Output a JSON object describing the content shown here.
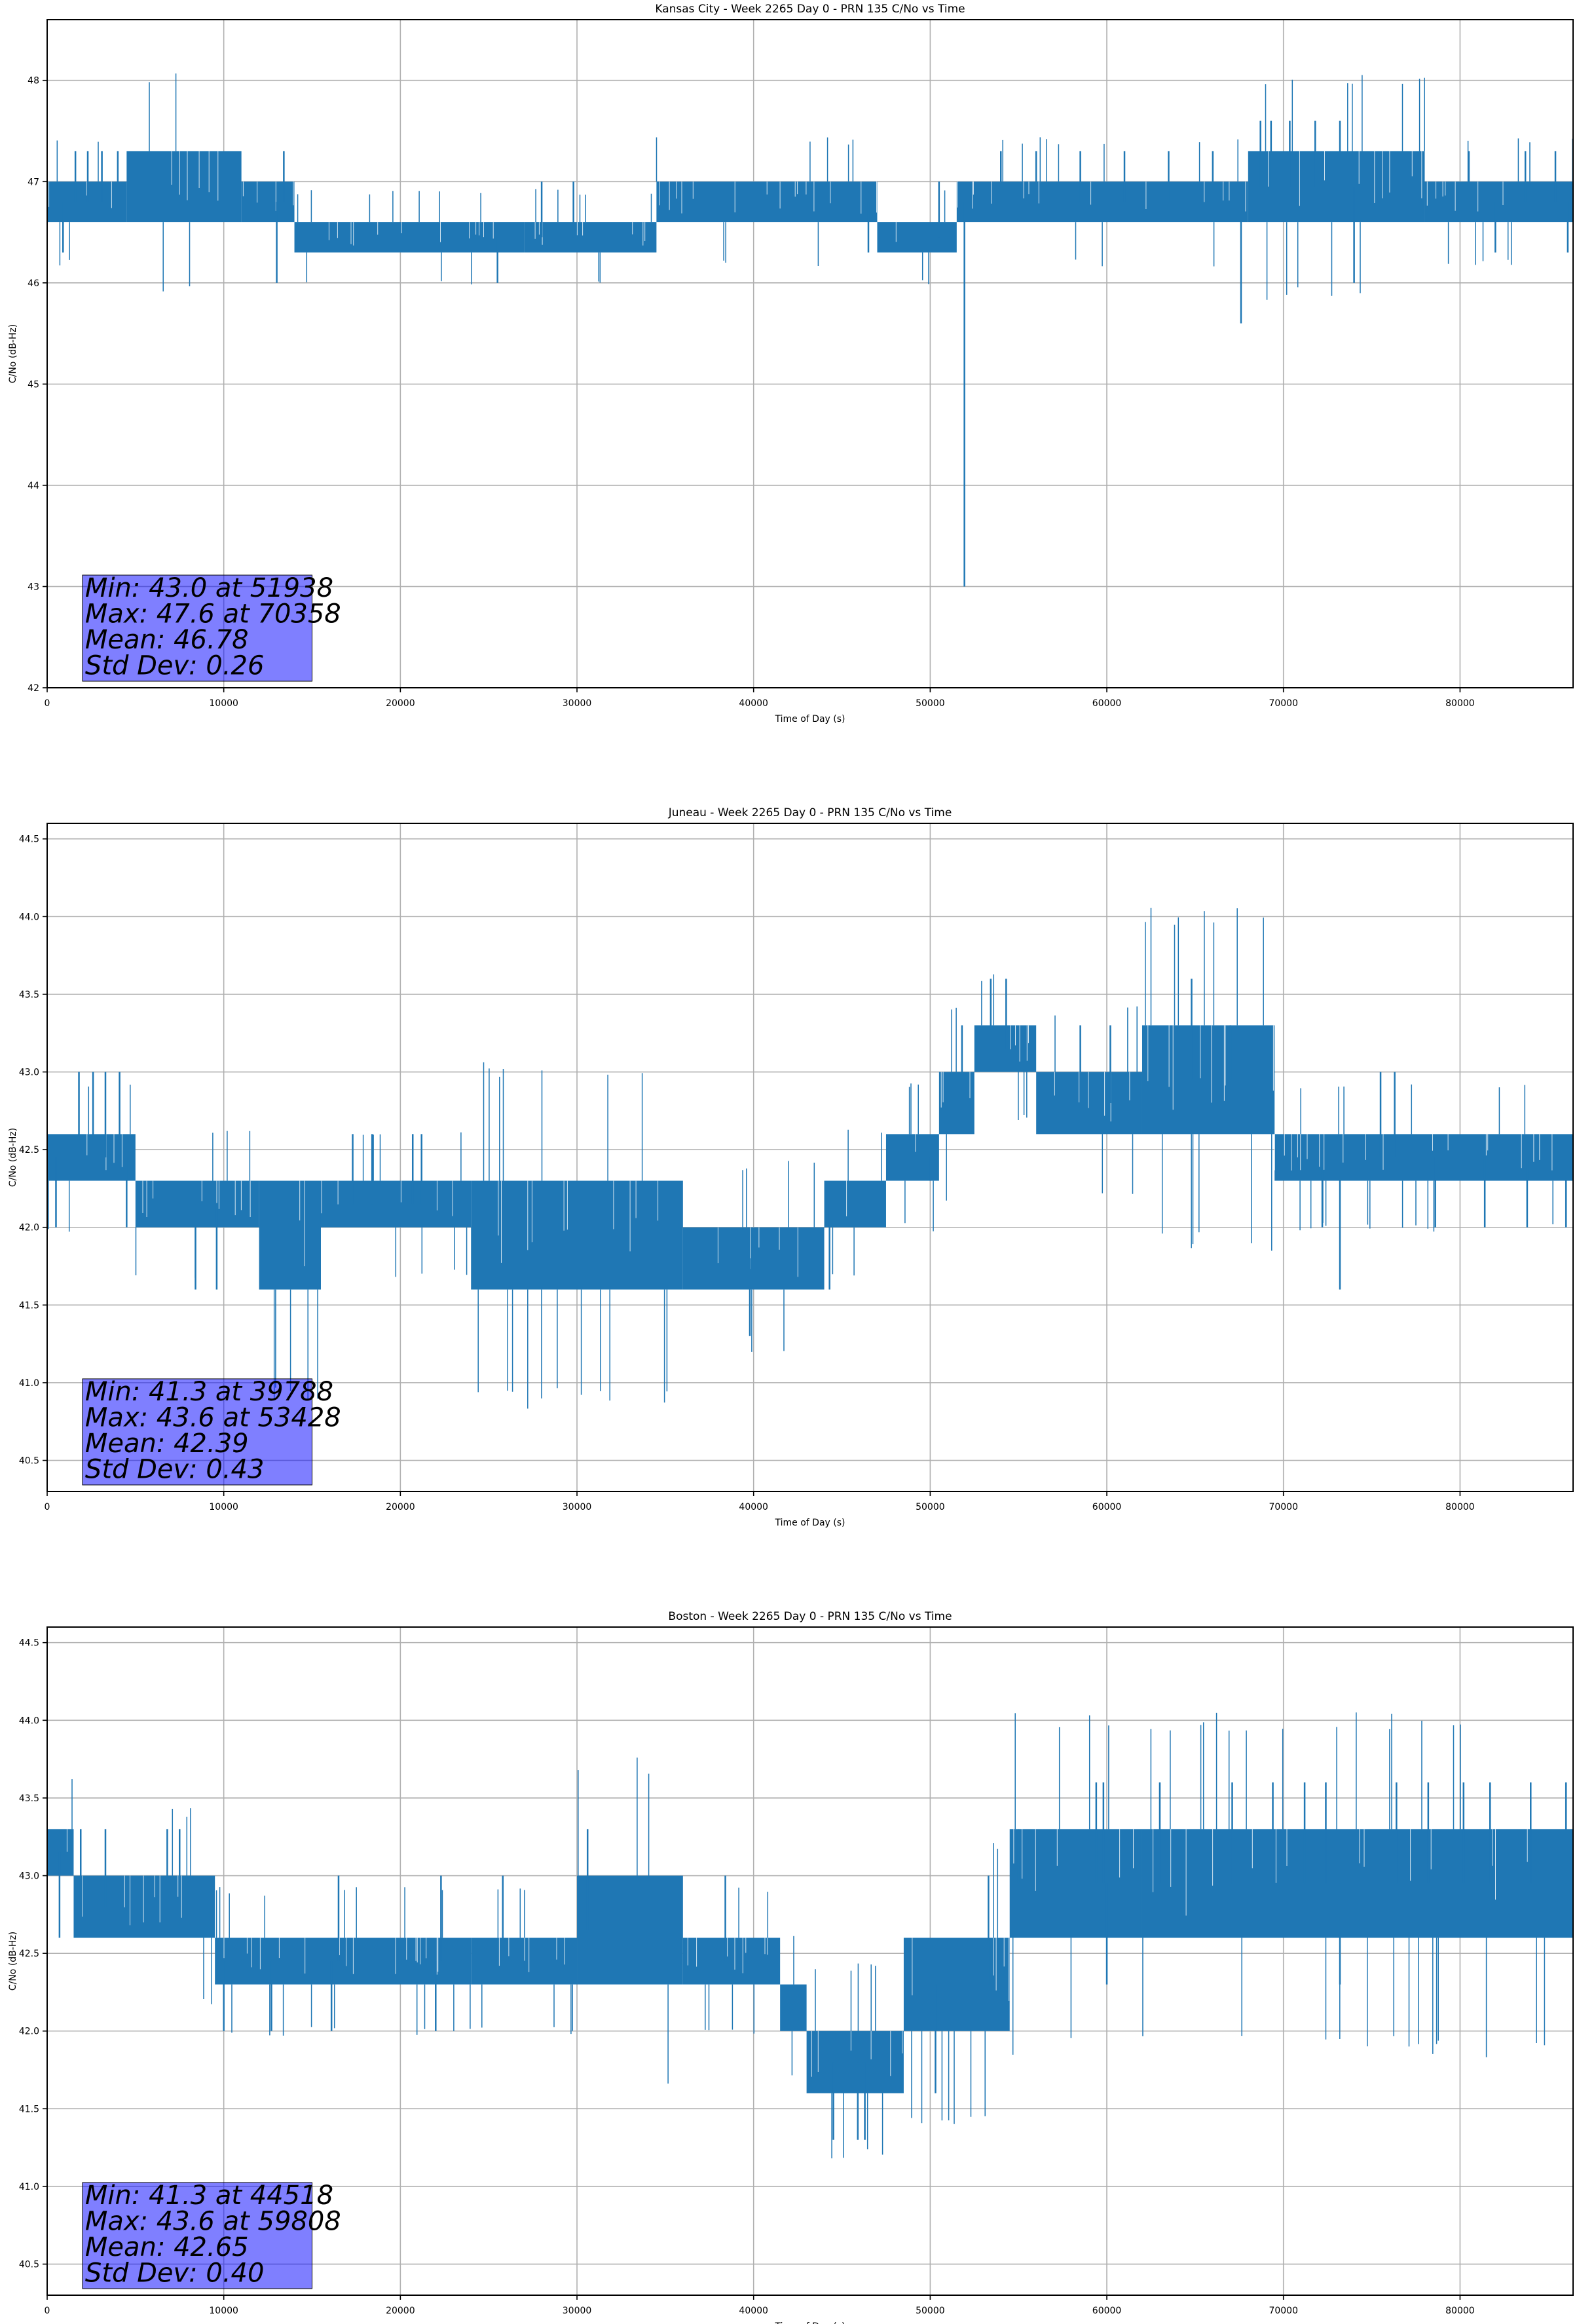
{
  "chart_data": [
    {
      "type": "line",
      "title": "Kansas City - Week 2265 Day 0 - PRN 135 C/No vs Time",
      "xlabel": "Time of Day (s)",
      "ylabel": "C/No (dB-Hz)",
      "xlim": [
        0,
        86400
      ],
      "ylim": [
        42,
        48.6
      ],
      "xticks": [
        0,
        10000,
        20000,
        30000,
        40000,
        50000,
        60000,
        70000,
        80000
      ],
      "yticks": [
        42,
        43,
        44,
        45,
        46,
        47,
        48
      ],
      "ytick_labels": [
        "42",
        "43",
        "44",
        "45",
        "46",
        "47",
        "48"
      ],
      "grid": true,
      "line_color": "#1f77b4",
      "stats": [
        "Min: 43.0 at 51938",
        "Max: 47.6 at 70358",
        "Mean: 46.78",
        "Std Dev: 0.26"
      ],
      "series": [
        {
          "segments": [
            {
              "x": [
                0,
                4500
              ],
              "base": 46.6,
              "top": 47.0
            },
            {
              "x": [
                4500,
                11000
              ],
              "base": 46.6,
              "top": 47.3
            },
            {
              "x": [
                11000,
                14000
              ],
              "base": 46.6,
              "top": 47.0
            },
            {
              "x": [
                14000,
                27000
              ],
              "base": 46.3,
              "top": 46.6
            },
            {
              "x": [
                27000,
                34500
              ],
              "base": 46.3,
              "top": 46.6
            },
            {
              "x": [
                34500,
                47000
              ],
              "base": 46.6,
              "top": 47.0
            },
            {
              "x": [
                47000,
                51500
              ],
              "base": 46.3,
              "top": 46.6
            },
            {
              "x": [
                51500,
                68000
              ],
              "base": 46.6,
              "top": 47.0
            },
            {
              "x": [
                68000,
                78000
              ],
              "base": 46.6,
              "top": 47.3
            },
            {
              "x": [
                78000,
                86400
              ],
              "base": 46.6,
              "top": 47.0
            }
          ],
          "spikes": [
            {
              "x": 900,
              "y": 46.3
            },
            {
              "x": 1600,
              "y": 47.3
            },
            {
              "x": 2300,
              "y": 47.3
            },
            {
              "x": 3100,
              "y": 47.3
            },
            {
              "x": 4000,
              "y": 47.3
            },
            {
              "x": 13000,
              "y": 46.0
            },
            {
              "x": 13400,
              "y": 47.3
            },
            {
              "x": 25500,
              "y": 46.0
            },
            {
              "x": 28000,
              "y": 47.0
            },
            {
              "x": 29800,
              "y": 47.0
            },
            {
              "x": 46500,
              "y": 46.3
            },
            {
              "x": 50500,
              "y": 47.0
            },
            {
              "x": 51938,
              "y": 43.0
            },
            {
              "x": 54000,
              "y": 47.3
            },
            {
              "x": 56000,
              "y": 47.3
            },
            {
              "x": 58500,
              "y": 47.3
            },
            {
              "x": 61000,
              "y": 47.3
            },
            {
              "x": 63500,
              "y": 47.3
            },
            {
              "x": 66000,
              "y": 47.3
            },
            {
              "x": 67600,
              "y": 45.6
            },
            {
              "x": 68700,
              "y": 47.6
            },
            {
              "x": 69300,
              "y": 47.6
            },
            {
              "x": 70358,
              "y": 47.6
            },
            {
              "x": 71800,
              "y": 47.6
            },
            {
              "x": 73200,
              "y": 47.6
            },
            {
              "x": 74000,
              "y": 46.0
            },
            {
              "x": 80500,
              "y": 47.3
            },
            {
              "x": 82000,
              "y": 46.3
            },
            {
              "x": 83700,
              "y": 47.3
            },
            {
              "x": 85400,
              "y": 47.3
            },
            {
              "x": 86100,
              "y": 46.3
            }
          ]
        }
      ]
    },
    {
      "type": "line",
      "title": "Juneau - Week 2265 Day 0 - PRN 135 C/No vs Time",
      "xlabel": "Time of Day (s)",
      "ylabel": "C/No (dB-Hz)",
      "xlim": [
        0,
        86400
      ],
      "ylim": [
        40.3,
        44.6
      ],
      "xticks": [
        0,
        10000,
        20000,
        30000,
        40000,
        50000,
        60000,
        70000,
        80000
      ],
      "yticks": [
        40.5,
        41.0,
        41.5,
        42.0,
        42.5,
        43.0,
        43.5,
        44.0,
        44.5
      ],
      "ytick_labels": [
        "40.5",
        "41.0",
        "41.5",
        "42.0",
        "42.5",
        "43.0",
        "43.5",
        "44.0",
        "44.5"
      ],
      "grid": true,
      "line_color": "#1f77b4",
      "stats": [
        "Min: 41.3 at 39788",
        "Max: 43.6 at 53428",
        "Mean: 42.39",
        "Std Dev: 0.43"
      ],
      "series": [
        {
          "segments": [
            {
              "x": [
                0,
                5000
              ],
              "base": 42.3,
              "top": 42.6
            },
            {
              "x": [
                5000,
                12000
              ],
              "base": 42.0,
              "top": 42.3
            },
            {
              "x": [
                12000,
                15500
              ],
              "base": 41.6,
              "top": 42.3
            },
            {
              "x": [
                15500,
                24000
              ],
              "base": 42.0,
              "top": 42.3
            },
            {
              "x": [
                24000,
                36000
              ],
              "base": 41.6,
              "top": 42.3
            },
            {
              "x": [
                36000,
                44000
              ],
              "base": 41.6,
              "top": 42.0
            },
            {
              "x": [
                44000,
                47500
              ],
              "base": 42.0,
              "top": 42.3
            },
            {
              "x": [
                47500,
                50500
              ],
              "base": 42.3,
              "top": 42.6
            },
            {
              "x": [
                50500,
                52500
              ],
              "base": 42.6,
              "top": 43.0
            },
            {
              "x": [
                52500,
                56000
              ],
              "base": 43.0,
              "top": 43.3
            },
            {
              "x": [
                56000,
                62000
              ],
              "base": 42.6,
              "top": 43.0
            },
            {
              "x": [
                62000,
                69500
              ],
              "base": 42.6,
              "top": 43.3
            },
            {
              "x": [
                69500,
                86400
              ],
              "base": 42.3,
              "top": 42.6
            }
          ],
          "spikes": [
            {
              "x": 500,
              "y": 42.0
            },
            {
              "x": 1800,
              "y": 43.0
            },
            {
              "x": 2600,
              "y": 43.0
            },
            {
              "x": 3300,
              "y": 43.0
            },
            {
              "x": 4100,
              "y": 43.0
            },
            {
              "x": 4500,
              "y": 42.0
            },
            {
              "x": 8400,
              "y": 41.6
            },
            {
              "x": 9600,
              "y": 41.6
            },
            {
              "x": 17300,
              "y": 42.6
            },
            {
              "x": 18400,
              "y": 42.6
            },
            {
              "x": 20700,
              "y": 42.6
            },
            {
              "x": 21200,
              "y": 42.6
            },
            {
              "x": 39788,
              "y": 41.3
            },
            {
              "x": 44300,
              "y": 41.6
            },
            {
              "x": 50000,
              "y": 42.3
            },
            {
              "x": 51800,
              "y": 43.3
            },
            {
              "x": 53428,
              "y": 43.6
            },
            {
              "x": 54300,
              "y": 43.6
            },
            {
              "x": 58500,
              "y": 43.3
            },
            {
              "x": 60200,
              "y": 43.3
            },
            {
              "x": 64800,
              "y": 43.6
            },
            {
              "x": 67000,
              "y": 43.3
            },
            {
              "x": 72200,
              "y": 42.0
            },
            {
              "x": 73200,
              "y": 41.6
            },
            {
              "x": 75500,
              "y": 43.0
            },
            {
              "x": 76300,
              "y": 43.0
            },
            {
              "x": 78600,
              "y": 42.0
            },
            {
              "x": 81400,
              "y": 42.0
            },
            {
              "x": 83800,
              "y": 42.0
            },
            {
              "x": 86000,
              "y": 42.0
            }
          ]
        }
      ]
    },
    {
      "type": "line",
      "title": "Boston - Week 2265 Day 0 - PRN 135 C/No vs Time",
      "xlabel": "Time of Day (s)",
      "ylabel": "C/No (dB-Hz)",
      "xlim": [
        0,
        86400
      ],
      "ylim": [
        40.3,
        44.6
      ],
      "xticks": [
        0,
        10000,
        20000,
        30000,
        40000,
        50000,
        60000,
        70000,
        80000
      ],
      "yticks": [
        40.5,
        41.0,
        41.5,
        42.0,
        42.5,
        43.0,
        43.5,
        44.0,
        44.5
      ],
      "ytick_labels": [
        "40.5",
        "41.0",
        "41.5",
        "42.0",
        "42.5",
        "43.0",
        "43.5",
        "44.0",
        "44.5"
      ],
      "grid": true,
      "line_color": "#1f77b4",
      "stats": [
        "Min: 41.3 at 44518",
        "Max: 43.6 at 59808",
        "Mean: 42.65",
        "Std Dev: 0.40"
      ],
      "series": [
        {
          "segments": [
            {
              "x": [
                0,
                1500
              ],
              "base": 43.0,
              "top": 43.3
            },
            {
              "x": [
                1500,
                9500
              ],
              "base": 42.6,
              "top": 43.0
            },
            {
              "x": [
                9500,
                24000
              ],
              "base": 42.3,
              "top": 42.6
            },
            {
              "x": [
                24000,
                30000
              ],
              "base": 42.3,
              "top": 42.6
            },
            {
              "x": [
                30000,
                36000
              ],
              "base": 42.3,
              "top": 43.0
            },
            {
              "x": [
                36000,
                41500
              ],
              "base": 42.3,
              "top": 42.6
            },
            {
              "x": [
                41500,
                43000
              ],
              "base": 42.0,
              "top": 42.3
            },
            {
              "x": [
                43000,
                48500
              ],
              "base": 41.6,
              "top": 42.0
            },
            {
              "x": [
                48500,
                54500
              ],
              "base": 42.0,
              "top": 42.6
            },
            {
              "x": [
                54500,
                62000
              ],
              "base": 42.6,
              "top": 43.3
            },
            {
              "x": [
                62000,
                86400
              ],
              "base": 42.6,
              "top": 43.3
            }
          ],
          "spikes": [
            {
              "x": 700,
              "y": 42.6
            },
            {
              "x": 1900,
              "y": 43.3
            },
            {
              "x": 3300,
              "y": 43.3
            },
            {
              "x": 6800,
              "y": 43.3
            },
            {
              "x": 7500,
              "y": 43.3
            },
            {
              "x": 10000,
              "y": 42.0
            },
            {
              "x": 12700,
              "y": 42.0
            },
            {
              "x": 16100,
              "y": 42.0
            },
            {
              "x": 16500,
              "y": 43.0
            },
            {
              "x": 22000,
              "y": 42.0
            },
            {
              "x": 22300,
              "y": 43.0
            },
            {
              "x": 25800,
              "y": 43.0
            },
            {
              "x": 30600,
              "y": 43.3
            },
            {
              "x": 38400,
              "y": 43.0
            },
            {
              "x": 44518,
              "y": 41.3
            },
            {
              "x": 45900,
              "y": 41.3
            },
            {
              "x": 46300,
              "y": 41.3
            },
            {
              "x": 50300,
              "y": 41.6
            },
            {
              "x": 53300,
              "y": 43.0
            },
            {
              "x": 55000,
              "y": 43.3
            },
            {
              "x": 59400,
              "y": 43.6
            },
            {
              "x": 59808,
              "y": 43.6
            },
            {
              "x": 60000,
              "y": 42.3
            },
            {
              "x": 63000,
              "y": 43.6
            },
            {
              "x": 67100,
              "y": 43.6
            },
            {
              "x": 69400,
              "y": 43.6
            },
            {
              "x": 71200,
              "y": 43.6
            },
            {
              "x": 72400,
              "y": 43.6
            },
            {
              "x": 73200,
              "y": 42.3
            },
            {
              "x": 76400,
              "y": 43.6
            },
            {
              "x": 78200,
              "y": 43.6
            },
            {
              "x": 80200,
              "y": 43.6
            },
            {
              "x": 81700,
              "y": 43.6
            },
            {
              "x": 84000,
              "y": 43.6
            },
            {
              "x": 86000,
              "y": 43.6
            }
          ]
        }
      ]
    }
  ]
}
